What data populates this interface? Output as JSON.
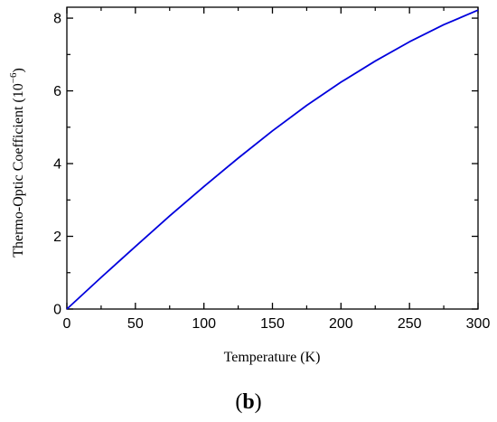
{
  "chart_data": {
    "type": "line",
    "xlabel": "Temperature (K)",
    "ylabel": "Thermo-Optic Coefficient (10",
    "ylabel_exponent": "−6",
    "ylabel_suffix": ")",
    "xlim": [
      0,
      300
    ],
    "ylim": [
      0,
      8.3
    ],
    "xticks": [
      0,
      50,
      100,
      150,
      200,
      250,
      300
    ],
    "yticks": [
      0,
      2,
      4,
      6,
      8
    ],
    "x_tick_labels": [
      "0",
      "50",
      "100",
      "150",
      "200",
      "250",
      "300"
    ],
    "y_tick_labels": [
      "0",
      "2",
      "4",
      "6",
      "8"
    ],
    "grid": false,
    "line_color": "#0000dd",
    "series": [
      {
        "x": [
          0,
          25,
          50,
          75,
          100,
          125,
          150,
          175,
          200,
          225,
          250,
          275,
          300
        ],
        "values": [
          0,
          0.87,
          1.72,
          2.56,
          3.37,
          4.15,
          4.9,
          5.6,
          6.24,
          6.82,
          7.35,
          7.82,
          8.22
        ]
      }
    ]
  },
  "caption": {
    "open": "(",
    "letter": "b",
    "close": ")"
  }
}
